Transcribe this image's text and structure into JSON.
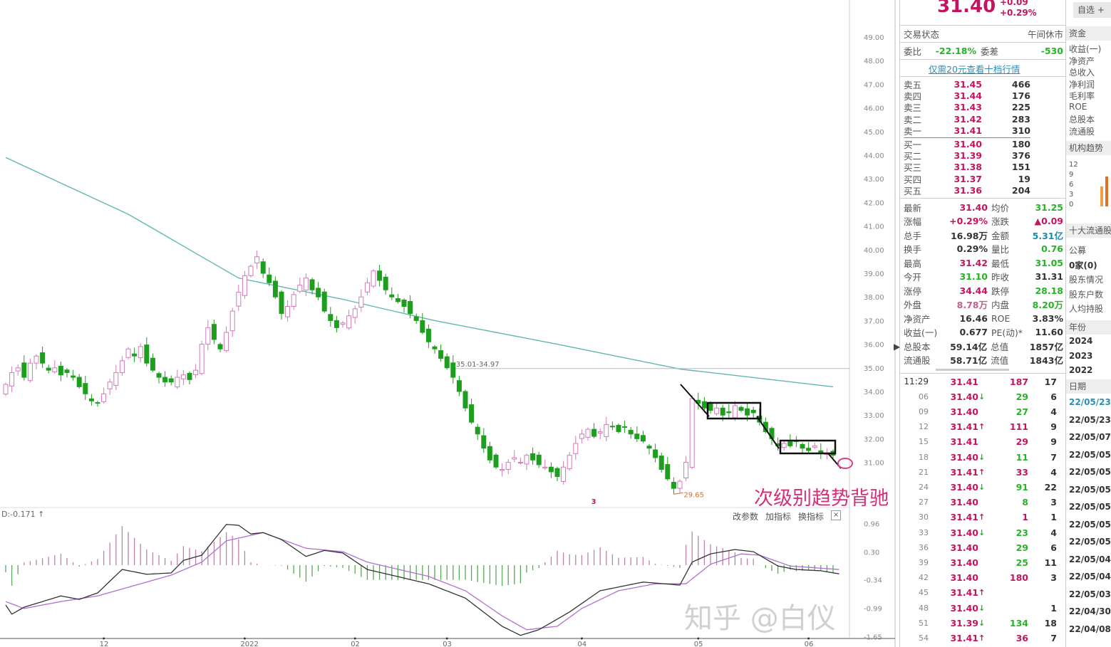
{
  "chart_data": [
    {
      "type": "candlestick",
      "price_axis": {
        "ticks": [
          "49.00",
          "48.00",
          "47.00",
          "46.00",
          "45.00",
          "44.00",
          "43.00",
          "42.00",
          "41.00",
          "40.00",
          "39.00",
          "38.00",
          "37.00",
          "36.00",
          "35.00",
          "34.00",
          "33.00",
          "32.00",
          "31.00"
        ],
        "ylim": [
          30.5,
          49.3
        ]
      },
      "x_tick_labels": [
        {
          "bar": 16,
          "label": "12"
        },
        {
          "bar": 39,
          "label": "2022"
        },
        {
          "bar": 57,
          "label": "02"
        },
        {
          "bar": 72,
          "label": "03"
        },
        {
          "bar": 94,
          "label": "04"
        },
        {
          "bar": 113,
          "label": "05"
        },
        {
          "bar": 131,
          "label": "06"
        }
      ],
      "closes": [
        34.3,
        34.8,
        35.0,
        34.6,
        35.2,
        35.5,
        35.2,
        34.9,
        35.0,
        34.7,
        34.8,
        34.6,
        34.2,
        33.9,
        33.6,
        33.5,
        33.9,
        34.4,
        34.8,
        35.3,
        35.8,
        35.5,
        35.9,
        35.2,
        34.9,
        34.6,
        34.4,
        34.4,
        34.6,
        34.7,
        34.5,
        34.9,
        36.0,
        36.7,
        36.2,
        35.8,
        36.5,
        37.4,
        38.2,
        38.9,
        39.3,
        39.7,
        39.0,
        38.6,
        38.0,
        37.3,
        37.6,
        38.1,
        38.5,
        38.8,
        38.3,
        38.0,
        37.4,
        37.0,
        36.7,
        36.9,
        37.2,
        37.5,
        38.0,
        38.6,
        39.1,
        38.7,
        38.3,
        38.0,
        37.8,
        37.6,
        37.3,
        37.0,
        36.5,
        36.1,
        35.8,
        35.4,
        35.0,
        34.6,
        34.0,
        33.3,
        32.7,
        32.2,
        31.6,
        31.1,
        30.8,
        30.7,
        31.0,
        31.2,
        31.0,
        31.3,
        31.1,
        30.9,
        30.8,
        30.6,
        30.4,
        30.8,
        31.3,
        31.8,
        32.2,
        32.4,
        32.1,
        32.3,
        32.6,
        32.5,
        32.3,
        32.5,
        32.2,
        32.0,
        31.9,
        31.6,
        31.2,
        30.7,
        30.3,
        29.9,
        30.2,
        31.0,
        33.7,
        33.5,
        33.3,
        33.2,
        33.3,
        33.0,
        33.1,
        33.4,
        33.2,
        33.0,
        33.1,
        32.7,
        32.3,
        32.0,
        31.7,
        31.8,
        31.7,
        31.9,
        31.6,
        31.5,
        31.7,
        31.4,
        31.4,
        31.3
      ],
      "moving_average": [
        [
          0,
          43.9
        ],
        [
          20,
          41.5
        ],
        [
          38,
          38.8
        ],
        [
          55,
          37.9
        ],
        [
          70,
          37.0
        ],
        [
          90,
          36.0
        ],
        [
          110,
          34.95
        ],
        [
          135,
          34.2
        ]
      ],
      "reference_line": {
        "value": 34.97,
        "from_bar": 73,
        "label": "35.01-34.97"
      },
      "low_marker": {
        "bar": 109,
        "value": 29.65,
        "label": "29.65"
      },
      "bar_marker": {
        "bar": 96,
        "label": "3"
      },
      "colors": {
        "up": "#d27ab8",
        "down": "#1e9e1e",
        "ma": "#5fb8b0"
      }
    },
    {
      "type": "macd",
      "axis_ticks": [
        0.96,
        0.3,
        -0.34,
        -0.99,
        -1.65
      ],
      "header_value": "D:-0.171 ↑",
      "dif": [
        [
          0,
          -0.92
        ],
        [
          1,
          -1.13
        ],
        [
          3,
          -0.97
        ],
        [
          9,
          -0.71
        ],
        [
          12,
          -0.79
        ],
        [
          15,
          -0.64
        ],
        [
          19,
          -0.1
        ],
        [
          23,
          -0.21
        ],
        [
          27,
          -0.18
        ],
        [
          29,
          0.11
        ],
        [
          32,
          0.23
        ],
        [
          36,
          0.94
        ],
        [
          38,
          0.92
        ],
        [
          40,
          0.72
        ],
        [
          42,
          0.75
        ],
        [
          45,
          0.59
        ],
        [
          49,
          0.2
        ],
        [
          52,
          0.34
        ],
        [
          55,
          0.28
        ],
        [
          59,
          -0.1
        ],
        [
          69,
          -0.43
        ],
        [
          75,
          -0.76
        ],
        [
          81,
          -1.41
        ],
        [
          84,
          -1.62
        ],
        [
          87,
          -1.49
        ],
        [
          92,
          -1.08
        ],
        [
          97,
          -0.59
        ],
        [
          104,
          -0.39
        ],
        [
          110,
          -0.46
        ],
        [
          112,
          0.07
        ],
        [
          115,
          0.26
        ],
        [
          119,
          0.36
        ],
        [
          122,
          0.31
        ],
        [
          126,
          -0.02
        ],
        [
          129,
          -0.1
        ],
        [
          133,
          -0.13
        ],
        [
          136,
          -0.2
        ]
      ],
      "dea": [
        [
          0,
          -0.84
        ],
        [
          3,
          -1.0
        ],
        [
          9,
          -0.84
        ],
        [
          15,
          -0.71
        ],
        [
          22,
          -0.43
        ],
        [
          27,
          -0.23
        ],
        [
          32,
          0.07
        ],
        [
          36,
          0.56
        ],
        [
          42,
          0.75
        ],
        [
          49,
          0.39
        ],
        [
          55,
          0.31
        ],
        [
          59,
          0.07
        ],
        [
          69,
          -0.26
        ],
        [
          75,
          -0.59
        ],
        [
          81,
          -1.17
        ],
        [
          85,
          -1.49
        ],
        [
          90,
          -1.41
        ],
        [
          94,
          -1.0
        ],
        [
          100,
          -0.59
        ],
        [
          106,
          -0.43
        ],
        [
          111,
          -0.43
        ],
        [
          115,
          0.02
        ],
        [
          120,
          0.26
        ],
        [
          123,
          0.23
        ],
        [
          128,
          -0.02
        ],
        [
          136,
          -0.1
        ]
      ],
      "colors": {
        "dif": "#333333",
        "dea": "#b070d0",
        "hist_up": "#c080a8",
        "hist_down": "#5aa85a"
      }
    }
  ],
  "indicator_toolbar": {
    "modify": "改参数",
    "add": "加指标",
    "switch": "换指标",
    "close": "×"
  },
  "annotation": "次级别趋势背驰",
  "watermark": "知乎 @白仪",
  "quote": {
    "price": "31.40",
    "change": "+0.09",
    "change_pct": "+0.29%",
    "favorite_button": "自选 +",
    "status_label": "交易状态",
    "status_value": "午间休市",
    "ratio_label": "委比",
    "ratio_value": "-22.18%",
    "diff_label": "委差",
    "diff_value": "-530",
    "promo_link": "仅需20元查看十档行情",
    "asks": [
      {
        "label": "卖五",
        "price": "31.45",
        "qty": "466"
      },
      {
        "label": "卖四",
        "price": "31.44",
        "qty": "176"
      },
      {
        "label": "卖三",
        "price": "31.43",
        "qty": "225"
      },
      {
        "label": "卖二",
        "price": "31.42",
        "qty": "283"
      },
      {
        "label": "卖一",
        "price": "31.41",
        "qty": "310"
      }
    ],
    "bids": [
      {
        "label": "买一",
        "price": "31.40",
        "qty": "180"
      },
      {
        "label": "买二",
        "price": "31.39",
        "qty": "376"
      },
      {
        "label": "买三",
        "price": "31.38",
        "qty": "151"
      },
      {
        "label": "买四",
        "price": "31.37",
        "qty": "19"
      },
      {
        "label": "买五",
        "price": "31.36",
        "qty": "204"
      }
    ],
    "stats": [
      {
        "l": "最新",
        "v": "31.40",
        "vc": "red",
        "l2": "均价",
        "v2": "31.25",
        "v2c": "green"
      },
      {
        "l": "涨幅",
        "v": "+0.29%",
        "vc": "red",
        "l2": "涨跌",
        "v2": "▲0.09",
        "v2c": "red"
      },
      {
        "l": "总手",
        "v": "16.98万",
        "vc": "dark",
        "l2": "金额",
        "v2": "5.31亿",
        "v2c": "blue"
      },
      {
        "l": "换手",
        "v": "0.29%",
        "vc": "dark",
        "l2": "量比",
        "v2": "0.76",
        "v2c": "green"
      },
      {
        "l": "最高",
        "v": "31.42",
        "vc": "red",
        "l2": "最低",
        "v2": "31.05",
        "v2c": "green"
      },
      {
        "l": "今开",
        "v": "31.10",
        "vc": "green",
        "l2": "昨收",
        "v2": "31.31",
        "v2c": "dark"
      },
      {
        "l": "涨停",
        "v": "34.44",
        "vc": "red",
        "l2": "跌停",
        "v2": "28.18",
        "v2c": "green"
      },
      {
        "l": "外盘",
        "v": "8.78万",
        "vc": "pink",
        "l2": "内盘",
        "v2": "8.20万",
        "v2c": "green"
      },
      {
        "l": "净资产",
        "v": "16.46",
        "vc": "dark",
        "l2": "ROE",
        "v2": "3.83%",
        "v2c": "dark"
      },
      {
        "l": "收益(一)",
        "v": "0.677",
        "vc": "dark",
        "l2": "PE(动)*",
        "v2": "11.60",
        "v2c": "dark"
      },
      {
        "l": "总股本",
        "v": "59.14亿",
        "vc": "dark",
        "l2": "总值",
        "v2": "1857亿",
        "v2c": "dark"
      },
      {
        "l": "流通股",
        "v": "58.71亿",
        "vc": "dark",
        "l2": "流值",
        "v2": "1843亿",
        "v2c": "dark"
      }
    ],
    "ticks": [
      {
        "t": "11:29",
        "p": "31.41",
        "a": "",
        "q": "187",
        "qc": "red",
        "n": "17"
      },
      {
        "t": "06",
        "p": "31.40",
        "a": "↓",
        "q": "29",
        "qc": "green",
        "n": "6"
      },
      {
        "t": "09",
        "p": "31.40",
        "a": "",
        "q": "27",
        "qc": "green",
        "n": "4"
      },
      {
        "t": "12",
        "p": "31.41",
        "a": "↑",
        "q": "111",
        "qc": "red",
        "n": "9"
      },
      {
        "t": "15",
        "p": "31.41",
        "a": "",
        "q": "29",
        "qc": "red",
        "n": "9"
      },
      {
        "t": "18",
        "p": "31.40",
        "a": "↓",
        "q": "11",
        "qc": "green",
        "n": "7"
      },
      {
        "t": "21",
        "p": "31.41",
        "a": "↑",
        "q": "33",
        "qc": "red",
        "n": "4"
      },
      {
        "t": "24",
        "p": "31.40",
        "a": "↓",
        "q": "91",
        "qc": "green",
        "n": "22"
      },
      {
        "t": "27",
        "p": "31.40",
        "a": "",
        "q": "8",
        "qc": "green",
        "n": "3"
      },
      {
        "t": "30",
        "p": "31.41",
        "a": "↑",
        "q": "1",
        "qc": "red",
        "n": "1"
      },
      {
        "t": "33",
        "p": "31.40",
        "a": "↓",
        "q": "23",
        "qc": "green",
        "n": "4"
      },
      {
        "t": "36",
        "p": "31.40",
        "a": "",
        "q": "29",
        "qc": "green",
        "n": "6"
      },
      {
        "t": "39",
        "p": "31.40",
        "a": "",
        "q": "25",
        "qc": "green",
        "n": "11"
      },
      {
        "t": "42",
        "p": "31.40",
        "a": "",
        "q": "180",
        "qc": "red",
        "n": "3"
      },
      {
        "t": "45",
        "p": "31.41",
        "a": "↑",
        "q": "",
        "qc": "red",
        "n": ""
      },
      {
        "t": "48",
        "p": "31.40",
        "a": "↓",
        "q": "",
        "qc": "green",
        "n": "1"
      },
      {
        "t": "51",
        "p": "31.39",
        "a": "↓",
        "q": "134",
        "qc": "green",
        "n": "18"
      },
      {
        "t": "54",
        "p": "31.41",
        "a": "↑",
        "q": "36",
        "qc": "red",
        "n": "7"
      }
    ]
  },
  "side": {
    "funds_header": "资金",
    "metrics": [
      "收益(一)",
      "净资产",
      "总收入",
      "净利润",
      "毛利率",
      "ROE",
      "总股本",
      "流通股"
    ],
    "inst_header": "机构趋势",
    "inst_axis": [
      "12",
      "9",
      "6",
      "3",
      "0"
    ],
    "top10_header": "十大流通股",
    "holders": [
      "公募",
      "0家(0)",
      "股东情况",
      "股东户数",
      "人均持股"
    ],
    "year_header": "年份",
    "years": [
      "2024",
      "2023",
      "2022"
    ],
    "date_header": "日期",
    "dates": [
      "22/05/23",
      "22/05/23",
      "22/05/07",
      "22/05/05",
      "22/05/05",
      "22/05/05",
      "22/05/05",
      "22/05/05",
      "22/05/05",
      "22/05/04",
      "22/05/04",
      "22/05/03",
      "22/04/30",
      "22/04/08"
    ]
  }
}
